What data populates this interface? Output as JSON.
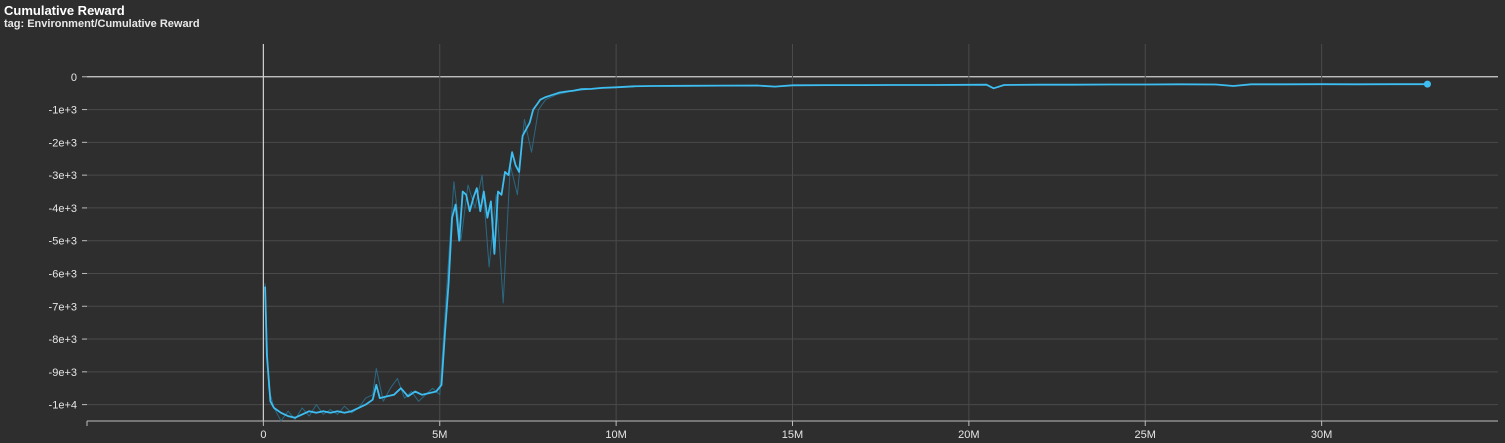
{
  "header": {
    "title": "Cumulative Reward",
    "subtitle": "tag: Environment/Cumulative Reward"
  },
  "colors": {
    "background": "#2e2e2e",
    "grid": "#4a4a4a",
    "axis": "#bdbdbd",
    "zero_line": "#d0d0d0",
    "smoothed": "#3dbdf0",
    "raw": "#2a6f8c"
  },
  "chart_data": {
    "type": "line",
    "title": "Cumulative Reward",
    "xlabel": "",
    "ylabel": "",
    "xlim": [
      -5000000,
      35000000
    ],
    "ylim": [
      -10500,
      1000
    ],
    "grid": true,
    "x_ticks": [
      {
        "value": 0,
        "label": "0"
      },
      {
        "value": 5000000,
        "label": "5M"
      },
      {
        "value": 10000000,
        "label": "10M"
      },
      {
        "value": 15000000,
        "label": "15M"
      },
      {
        "value": 20000000,
        "label": "20M"
      },
      {
        "value": 25000000,
        "label": "25M"
      },
      {
        "value": 30000000,
        "label": "30M"
      }
    ],
    "y_ticks": [
      {
        "value": 0,
        "label": "0"
      },
      {
        "value": -1000,
        "label": "-1e+3"
      },
      {
        "value": -2000,
        "label": "-2e+3"
      },
      {
        "value": -3000,
        "label": "-3e+3"
      },
      {
        "value": -4000,
        "label": "-4e+3"
      },
      {
        "value": -5000,
        "label": "-5e+3"
      },
      {
        "value": -6000,
        "label": "-6e+3"
      },
      {
        "value": -7000,
        "label": "-7e+3"
      },
      {
        "value": -8000,
        "label": "-8e+3"
      },
      {
        "value": -9000,
        "label": "-9e+3"
      },
      {
        "value": -10000,
        "label": "-1e+4"
      }
    ],
    "series": [
      {
        "role": "raw",
        "x": [
          50000,
          150000,
          300000,
          500000,
          700000,
          900000,
          1100000,
          1300000,
          1500000,
          1700000,
          1900000,
          2100000,
          2300000,
          2500000,
          2700000,
          2900000,
          3100000,
          3200000,
          3400000,
          3600000,
          3800000,
          4000000,
          4200000,
          4400000,
          4600000,
          4800000,
          5000000,
          5200000,
          5400000,
          5600000,
          5800000,
          6000000,
          6200000,
          6400000,
          6600000,
          6800000,
          7000000,
          7200000,
          7400000,
          7600000,
          7800000,
          8000000,
          8300000,
          8700000,
          9200000,
          9800000,
          10500000
        ],
        "y": [
          -6300,
          -9500,
          -10100,
          -10500,
          -10200,
          -10450,
          -10100,
          -10350,
          -10000,
          -10300,
          -10150,
          -10300,
          -10050,
          -10250,
          -10100,
          -9800,
          -9700,
          -8900,
          -9900,
          -9500,
          -9200,
          -9800,
          -9600,
          -9900,
          -9700,
          -9500,
          -9700,
          -6400,
          -3200,
          -5000,
          -3300,
          -4000,
          -3000,
          -5800,
          -3600,
          -6900,
          -2700,
          -3600,
          -1300,
          -2300,
          -1000,
          -700,
          -550,
          -450,
          -380,
          -330,
          -310
        ]
      },
      {
        "role": "smoothed",
        "x": [
          50000,
          100000,
          200000,
          300000,
          500000,
          700000,
          900000,
          1100000,
          1300000,
          1500000,
          1700000,
          1900000,
          2100000,
          2300000,
          2500000,
          2700000,
          2900000,
          3100000,
          3200000,
          3300000,
          3500000,
          3700000,
          3900000,
          4100000,
          4300000,
          4500000,
          4700000,
          4900000,
          5050000,
          5150000,
          5250000,
          5350000,
          5450000,
          5550000,
          5650000,
          5750000,
          5850000,
          5950000,
          6050000,
          6150000,
          6250000,
          6350000,
          6450000,
          6550000,
          6650000,
          6750000,
          6850000,
          6950000,
          7050000,
          7150000,
          7250000,
          7350000,
          7450000,
          7550000,
          7650000,
          7750000,
          7850000,
          8000000,
          8200000,
          8400000,
          8600000,
          8800000,
          9000000,
          9300000,
          9600000,
          10000000,
          10500000,
          11000000,
          12000000,
          13000000,
          14000000,
          14500000,
          15000000,
          16000000,
          17000000,
          18000000,
          19000000,
          20000000,
          20500000,
          20700000,
          21000000,
          22000000,
          23000000,
          24000000,
          25000000,
          26000000,
          27000000,
          27500000,
          28000000,
          29000000,
          30000000,
          31000000,
          32000000,
          33000000
        ],
        "y": [
          -6400,
          -8500,
          -9900,
          -10100,
          -10250,
          -10350,
          -10400,
          -10300,
          -10200,
          -10250,
          -10200,
          -10250,
          -10200,
          -10250,
          -10200,
          -10100,
          -10000,
          -9850,
          -9400,
          -9800,
          -9750,
          -9700,
          -9500,
          -9750,
          -9600,
          -9700,
          -9650,
          -9600,
          -9400,
          -7800,
          -6300,
          -4300,
          -3900,
          -5000,
          -3500,
          -3600,
          -4100,
          -3700,
          -3400,
          -4100,
          -3500,
          -4300,
          -3800,
          -5400,
          -3500,
          -3600,
          -2900,
          -3000,
          -2300,
          -2700,
          -2900,
          -1800,
          -1600,
          -1400,
          -1000,
          -850,
          -700,
          -620,
          -550,
          -480,
          -450,
          -420,
          -380,
          -370,
          -340,
          -320,
          -290,
          -280,
          -275,
          -270,
          -265,
          -300,
          -260,
          -255,
          -255,
          -250,
          -250,
          -245,
          -240,
          -350,
          -250,
          -240,
          -240,
          -235,
          -235,
          -230,
          -235,
          -280,
          -230,
          -230,
          -225,
          -230,
          -225,
          -225
        ]
      }
    ],
    "end_marker": {
      "x": 33000000,
      "y": -225
    }
  }
}
